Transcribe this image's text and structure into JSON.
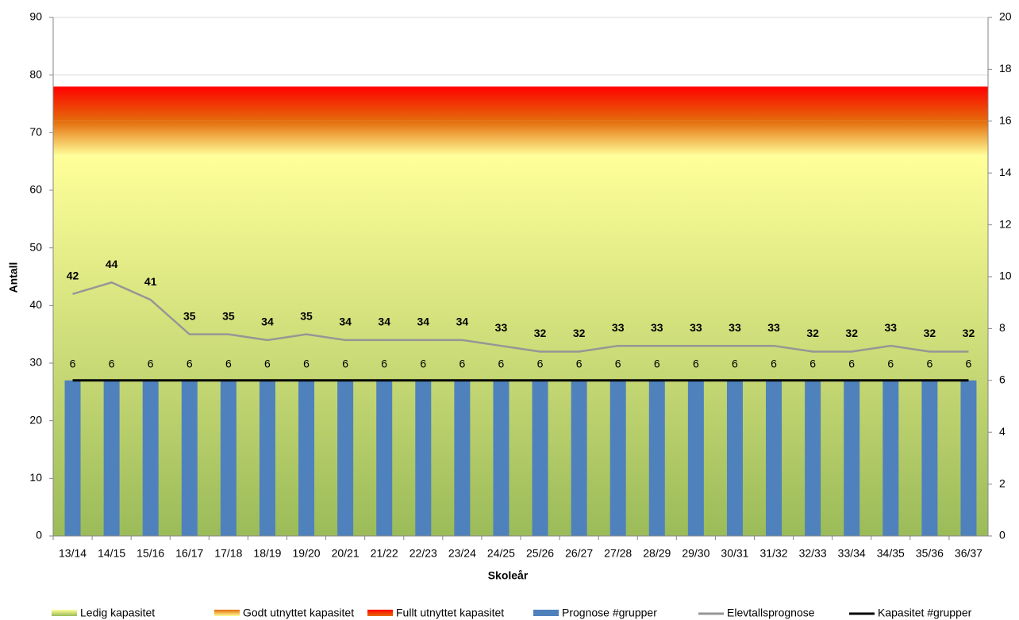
{
  "chart_data": {
    "type": "combo",
    "xlabel": "Skoleår",
    "ylabel": "Antall",
    "categories": [
      "13/14",
      "14/15",
      "15/16",
      "16/17",
      "17/18",
      "18/19",
      "19/20",
      "20/21",
      "21/22",
      "22/23",
      "23/24",
      "24/25",
      "25/26",
      "26/27",
      "27/28",
      "28/29",
      "29/30",
      "30/31",
      "31/32",
      "32/33",
      "33/34",
      "34/35",
      "35/36",
      "36/37"
    ],
    "ylim": [
      0,
      90
    ],
    "yticks": [
      0,
      10,
      20,
      30,
      40,
      50,
      60,
      70,
      80,
      90
    ],
    "y2lim": [
      0,
      20
    ],
    "y2ticks": [
      0,
      2,
      4,
      6,
      8,
      10,
      12,
      14,
      16,
      18,
      20
    ],
    "grid": true,
    "legend": "bottom",
    "series": [
      {
        "name": "Ledig kapasitet",
        "type": "area",
        "colors": [
          "#9bbb59",
          "#ffff99"
        ],
        "values": [
          66,
          66,
          66,
          66,
          66,
          66,
          66,
          66,
          66,
          66,
          66,
          66,
          66,
          66,
          66,
          66,
          66,
          66,
          66,
          66,
          66,
          66,
          66,
          66
        ]
      },
      {
        "name": "Godt utnyttet kapasitet",
        "type": "area",
        "colors": [
          "#ffff99",
          "#e46c0a"
        ],
        "values": [
          6,
          6,
          6,
          6,
          6,
          6,
          6,
          6,
          6,
          6,
          6,
          6,
          6,
          6,
          6,
          6,
          6,
          6,
          6,
          6,
          6,
          6,
          6,
          6
        ]
      },
      {
        "name": "Fullt utnyttet kapasitet",
        "type": "area",
        "colors": [
          "#e46c0a",
          "#ff0000"
        ],
        "values": [
          6,
          6,
          6,
          6,
          6,
          6,
          6,
          6,
          6,
          6,
          6,
          6,
          6,
          6,
          6,
          6,
          6,
          6,
          6,
          6,
          6,
          6,
          6,
          6
        ]
      },
      {
        "name": "Prognose #grupper",
        "type": "bar",
        "axis": "y2",
        "color": "#4f81bd",
        "values": [
          6,
          6,
          6,
          6,
          6,
          6,
          6,
          6,
          6,
          6,
          6,
          6,
          6,
          6,
          6,
          6,
          6,
          6,
          6,
          6,
          6,
          6,
          6,
          6
        ]
      },
      {
        "name": "Elevtallsprognose",
        "type": "line",
        "color": "#969696",
        "values": [
          42,
          44,
          41,
          35,
          35,
          34,
          35,
          34,
          34,
          34,
          34,
          33,
          32,
          32,
          33,
          33,
          33,
          33,
          33,
          32,
          32,
          33,
          32,
          32
        ]
      },
      {
        "name": "Kapasitet #grupper",
        "type": "line",
        "axis": "y2",
        "color": "#000000",
        "values": [
          6,
          6,
          6,
          6,
          6,
          6,
          6,
          6,
          6,
          6,
          6,
          6,
          6,
          6,
          6,
          6,
          6,
          6,
          6,
          6,
          6,
          6,
          6,
          6
        ]
      }
    ]
  }
}
